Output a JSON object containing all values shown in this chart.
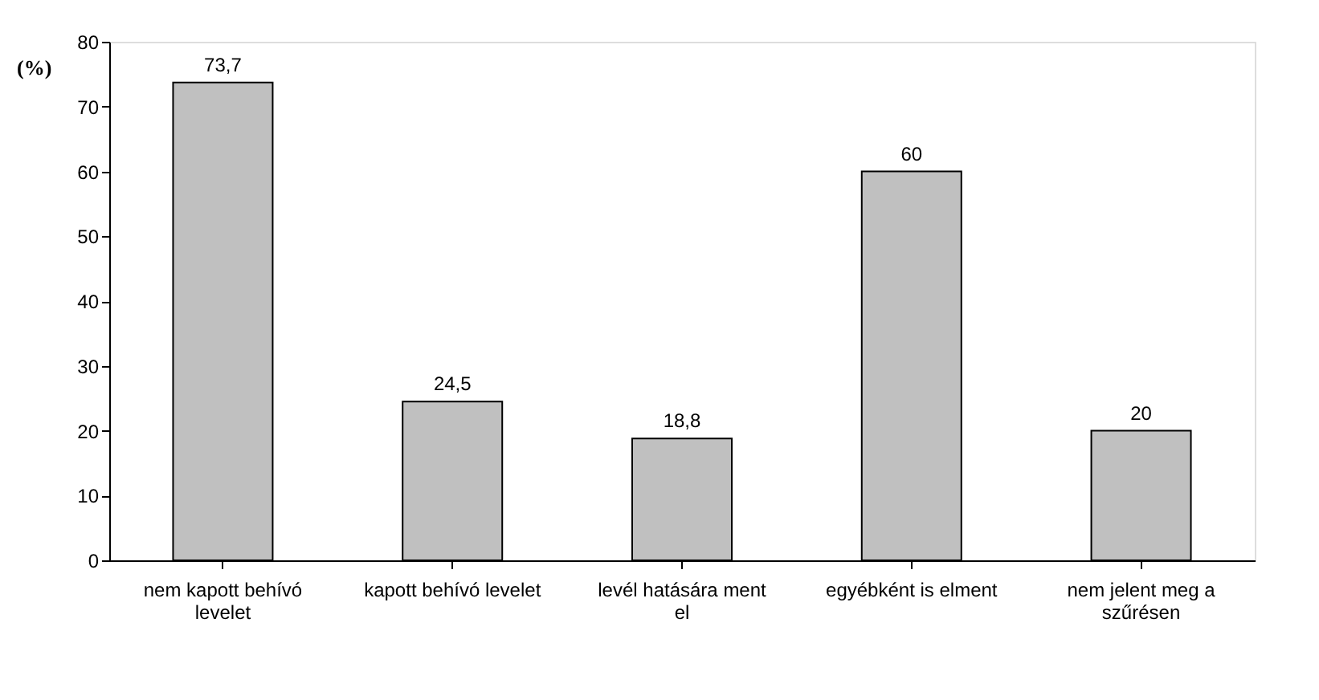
{
  "chart_data": {
    "type": "bar",
    "ylabel": "(%)",
    "categories": [
      "nem kapott behívó levelet",
      "kapott behívó levelet",
      "levél hatására ment el",
      "egyébként is elment",
      "nem jelent meg a szűrésen"
    ],
    "values": [
      73.7,
      24.5,
      18.8,
      60,
      20
    ],
    "value_labels": [
      "73,7",
      "24,5",
      "18,8",
      "60",
      "20"
    ],
    "color": "#c0c0c0",
    "ylim": [
      0,
      80
    ],
    "yticks": [
      0,
      10,
      20,
      30,
      40,
      50,
      60,
      70,
      80
    ],
    "grid": false
  }
}
